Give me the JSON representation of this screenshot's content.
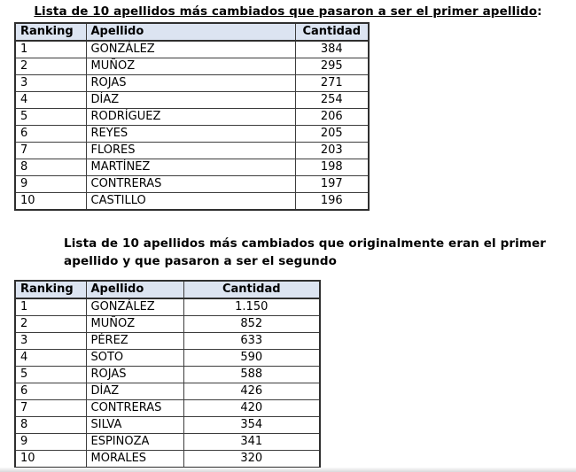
{
  "colors": {
    "header_bg": "#dce4f1",
    "border": "#3d3d3d",
    "text": "#000000",
    "page_bg": "#ffffff"
  },
  "section1": {
    "title_underlined": "Lista de 10 apellidos más cambiados que pasaron a ser el primer apellido",
    "title_suffix": ":",
    "table": {
      "columns": [
        "Ranking",
        "Apellido",
        "Cantidad"
      ],
      "rows": [
        [
          "1",
          "GONZÁLEZ",
          "384"
        ],
        [
          "2",
          "MUÑOZ",
          "295"
        ],
        [
          "3",
          "ROJAS",
          "271"
        ],
        [
          "4",
          "DÍAZ",
          "254"
        ],
        [
          "5",
          "RODRÍGUEZ",
          "206"
        ],
        [
          "6",
          "REYES",
          "205"
        ],
        [
          "7",
          "FLORES",
          "203"
        ],
        [
          "8",
          "MARTÍNEZ",
          "198"
        ],
        [
          "9",
          "CONTRERAS",
          "197"
        ],
        [
          "10",
          "CASTILLO",
          "196"
        ]
      ]
    }
  },
  "section2": {
    "title_lines": [
      "Lista de 10 apellidos más cambiados que originalmente eran el primer",
      "apellido y que pasaron a ser el segundo"
    ],
    "table": {
      "columns": [
        "Ranking",
        "Apellido",
        "Cantidad"
      ],
      "rows": [
        [
          "1",
          "GONZÁLEZ",
          "1.150"
        ],
        [
          "2",
          "MUÑOZ",
          "852"
        ],
        [
          "3",
          "PÉREZ",
          "633"
        ],
        [
          "4",
          "SOTO",
          "590"
        ],
        [
          "5",
          "ROJAS",
          "588"
        ],
        [
          "6",
          "DÍAZ",
          "426"
        ],
        [
          "7",
          "CONTRERAS",
          "420"
        ],
        [
          "8",
          "SILVA",
          "354"
        ],
        [
          "9",
          "ESPINOZA",
          "341"
        ],
        [
          "10",
          "MORALES",
          "320"
        ]
      ]
    }
  }
}
